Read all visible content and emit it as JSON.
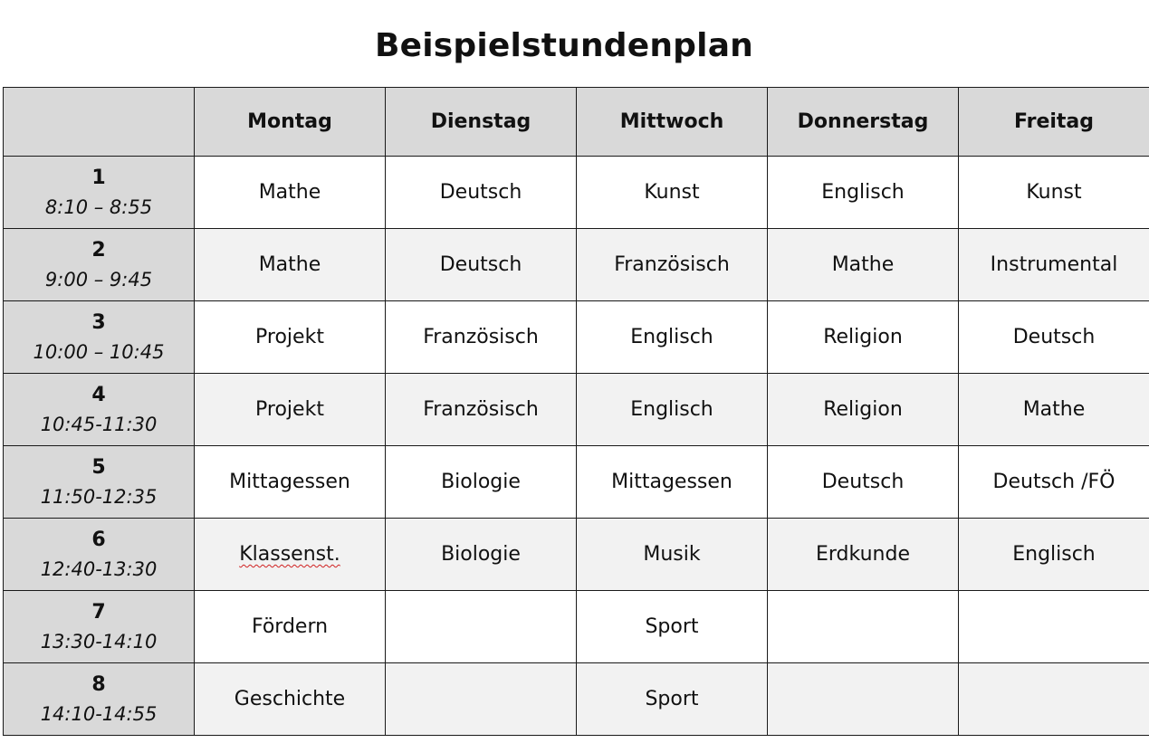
{
  "title": "Beispielstundenplan",
  "days": [
    "Montag",
    "Dienstag",
    "Mittwoch",
    "Donnerstag",
    "Freitag"
  ],
  "periods": [
    {
      "number": "1",
      "time": "8:10 – 8:55",
      "subjects": [
        "Mathe",
        "Deutsch",
        "Kunst",
        "Englisch",
        "Kunst"
      ]
    },
    {
      "number": "2",
      "time": "9:00 – 9:45",
      "subjects": [
        "Mathe",
        "Deutsch",
        "Französisch",
        "Mathe",
        "Instrumental"
      ]
    },
    {
      "number": "3",
      "time": "10:00 – 10:45",
      "subjects": [
        "Projekt",
        "Französisch",
        "Englisch",
        "Religion",
        "Deutsch"
      ]
    },
    {
      "number": "4",
      "time": "10:45-11:30",
      "subjects": [
        "Projekt",
        "Französisch",
        "Englisch",
        "Religion",
        "Mathe"
      ]
    },
    {
      "number": "5",
      "time": "11:50-12:35",
      "subjects": [
        "Mittagessen",
        "Biologie",
        "Mittagessen",
        "Deutsch",
        "Deutsch /FÖ"
      ]
    },
    {
      "number": "6",
      "time": "12:40-13:30",
      "subjects": [
        "Klassenst.",
        "Biologie",
        "Musik",
        "Erdkunde",
        "Englisch"
      ]
    },
    {
      "number": "7",
      "time": "13:30-14:10",
      "subjects": [
        "Fördern",
        "",
        "Sport",
        "",
        ""
      ]
    },
    {
      "number": "8",
      "time": "14:10-14:55",
      "subjects": [
        "Geschichte",
        "",
        "Sport",
        "",
        ""
      ]
    }
  ]
}
